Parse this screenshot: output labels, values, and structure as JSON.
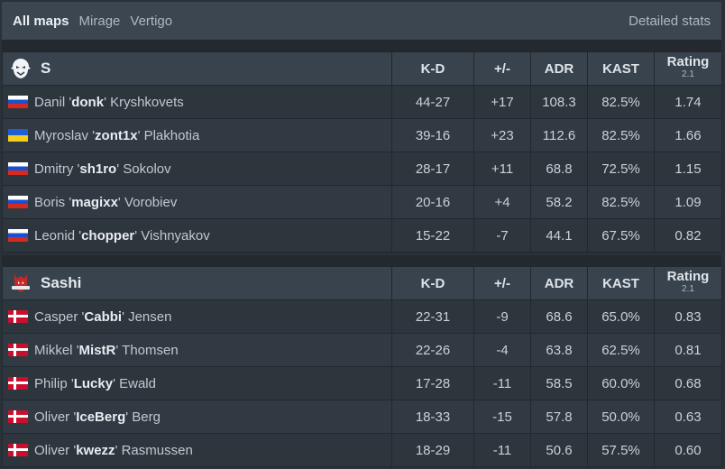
{
  "nav": {
    "tabs": [
      {
        "label": "All maps"
      },
      {
        "label": "Mirage"
      },
      {
        "label": "Vertigo"
      }
    ],
    "detailed_stats": "Detailed stats"
  },
  "columns": {
    "kd": "K-D",
    "plusminus": "+/-",
    "adr": "ADR",
    "kast": "KAST",
    "rating": "Rating",
    "rating_version": "2.1"
  },
  "teams": [
    {
      "name": "S",
      "logo_icon": "spirit-logo-icon",
      "players": [
        {
          "first": "Danil",
          "nick": "donk",
          "last": "Kryshkovets",
          "flag": "ru",
          "kd": "44-27",
          "pm": "+17",
          "adr": "108.3",
          "kast": "82.5%",
          "rating": "1.74"
        },
        {
          "first": "Myroslav",
          "nick": "zont1x",
          "last": "Plakhotia",
          "flag": "ua",
          "kd": "39-16",
          "pm": "+23",
          "adr": "112.6",
          "kast": "82.5%",
          "rating": "1.66"
        },
        {
          "first": "Dmitry",
          "nick": "sh1ro",
          "last": "Sokolov",
          "flag": "ru",
          "kd": "28-17",
          "pm": "+11",
          "adr": "68.8",
          "kast": "72.5%",
          "rating": "1.15"
        },
        {
          "first": "Boris",
          "nick": "magixx",
          "last": "Vorobiev",
          "flag": "ru",
          "kd": "20-16",
          "pm": "+4",
          "adr": "58.2",
          "kast": "82.5%",
          "rating": "1.09"
        },
        {
          "first": "Leonid",
          "nick": "chopper",
          "last": "Vishnyakov",
          "flag": "ru",
          "kd": "15-22",
          "pm": "-7",
          "adr": "44.1",
          "kast": "67.5%",
          "rating": "0.82"
        }
      ]
    },
    {
      "name": "Sashi",
      "logo_icon": "sashi-logo-icon",
      "players": [
        {
          "first": "Casper",
          "nick": "Cabbi",
          "last": "Jensen",
          "flag": "dk",
          "kd": "22-31",
          "pm": "-9",
          "adr": "68.6",
          "kast": "65.0%",
          "rating": "0.83"
        },
        {
          "first": "Mikkel",
          "nick": "MistR",
          "last": "Thomsen",
          "flag": "dk",
          "kd": "22-26",
          "pm": "-4",
          "adr": "63.8",
          "kast": "62.5%",
          "rating": "0.81"
        },
        {
          "first": "Philip",
          "nick": "Lucky",
          "last": "Ewald",
          "flag": "dk",
          "kd": "17-28",
          "pm": "-11",
          "adr": "58.5",
          "kast": "60.0%",
          "rating": "0.68"
        },
        {
          "first": "Oliver",
          "nick": "IceBerg",
          "last": "Berg",
          "flag": "dk",
          "kd": "18-33",
          "pm": "-15",
          "adr": "57.8",
          "kast": "50.0%",
          "rating": "0.63"
        },
        {
          "first": "Oliver",
          "nick": "kwezz",
          "last": "Rasmussen",
          "flag": "dk",
          "kd": "18-29",
          "pm": "-11",
          "adr": "50.6",
          "kast": "57.5%",
          "rating": "0.60"
        }
      ]
    }
  ]
}
